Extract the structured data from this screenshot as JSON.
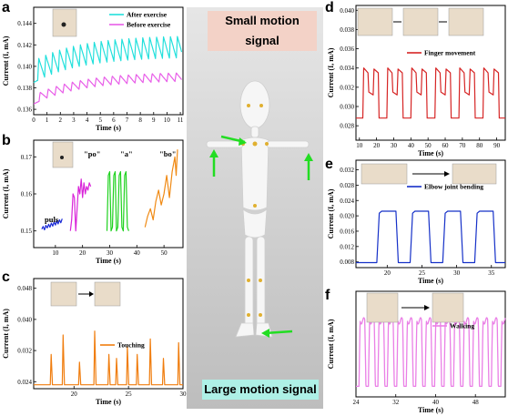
{
  "banners": {
    "top": "Small motion signal",
    "bottom": "Large motion signal",
    "top_color": "#f3d2c7",
    "bottom_color": "#aef0e6"
  },
  "labels": {
    "a": "a",
    "b": "b",
    "c": "c",
    "d": "d",
    "e": "e",
    "f": "f"
  },
  "chart_data": [
    {
      "id": "a",
      "type": "line",
      "xlabel": "Time (s)",
      "ylabel": "Current (I, mA)",
      "xlim": [
        0,
        11.2
      ],
      "ylim": [
        0.1355,
        0.1455
      ],
      "xticks": [
        0,
        1,
        2,
        3,
        4,
        5,
        6,
        7,
        8,
        9,
        10,
        11
      ],
      "yticks": [
        0.136,
        0.138,
        0.14,
        0.142,
        0.144
      ],
      "ytick_labels": [
        "0.136",
        "0.138",
        "0.140",
        "0.142",
        "0.144"
      ],
      "legend_position": "top-right",
      "series": [
        {
          "name": "After exercise",
          "color": "#22e0dc",
          "base": 0.1385,
          "trend": 0.0024,
          "amp": 0.002,
          "period": 0.52,
          "start": 0.3
        },
        {
          "name": "Before exercise",
          "color": "#e85ee8",
          "base": 0.1365,
          "trend": 0.0022,
          "amp": 0.0008,
          "period": 0.6,
          "start": 0.4
        }
      ]
    },
    {
      "id": "b",
      "type": "line",
      "xlabel": "Time (s)",
      "ylabel": "Current (I, mA)",
      "xlim": [
        2,
        57
      ],
      "ylim": [
        0.1455,
        0.1745
      ],
      "xticks": [
        10,
        20,
        30,
        40,
        50
      ],
      "yticks": [
        0.15,
        0.16,
        0.17
      ],
      "ytick_labels": [
        "0.15",
        "0.16",
        "0.17"
      ],
      "series": [
        {
          "name": "puls",
          "label": "puls",
          "color": "#1a2ad6",
          "x": [
            5.0,
            5.5,
            6.0,
            6.5,
            7.0,
            7.5,
            8.0,
            8.5,
            9.0,
            9.5,
            10.0,
            10.5,
            11.0,
            11.5,
            12.0,
            12.5
          ],
          "y": [
            0.1505,
            0.1512,
            0.1503,
            0.1515,
            0.1508,
            0.1518,
            0.151,
            0.1521,
            0.1513,
            0.1524,
            0.1516,
            0.1527,
            0.1519,
            0.153,
            0.1522,
            0.1533
          ]
        },
        {
          "name": "po",
          "label": "\"po\"",
          "color": "#d924d9",
          "x": [
            15.5,
            16.0,
            16.5,
            17.0,
            17.5,
            18.0,
            18.5,
            19.0,
            19.5,
            20.0,
            20.5,
            21.0,
            21.5,
            22.0,
            22.5,
            23.0
          ],
          "y": [
            0.15,
            0.153,
            0.16,
            0.159,
            0.15,
            0.156,
            0.162,
            0.16,
            0.164,
            0.159,
            0.163,
            0.16,
            0.162,
            0.161,
            0.163,
            0.162
          ]
        },
        {
          "name": "a",
          "label": "\"a\"",
          "color": "#1fd21f",
          "x": [
            29.0,
            29.5,
            30.0,
            30.5,
            31.0,
            31.5,
            32.0,
            32.5,
            33.0,
            33.5,
            34.0,
            34.5,
            35.0,
            35.5,
            36.0,
            36.5,
            37.0
          ],
          "y": [
            0.15,
            0.165,
            0.166,
            0.15,
            0.151,
            0.165,
            0.166,
            0.15,
            0.151,
            0.165,
            0.166,
            0.151,
            0.15,
            0.165,
            0.166,
            0.151,
            0.15
          ]
        },
        {
          "name": "bo",
          "label": "\"bo\"",
          "color": "#f08a14",
          "x": [
            43.0,
            44.0,
            45.0,
            46.0,
            47.0,
            48.0,
            49.0,
            50.0,
            51.0,
            52.0,
            53.0,
            54.0,
            54.5,
            55.0
          ],
          "y": [
            0.151,
            0.154,
            0.156,
            0.153,
            0.158,
            0.161,
            0.157,
            0.16,
            0.165,
            0.159,
            0.166,
            0.17,
            0.165,
            0.172
          ]
        }
      ]
    },
    {
      "id": "c",
      "type": "line",
      "xlabel": "Time (s)",
      "ylabel": "Current (I, mA)",
      "xlim": [
        16.3,
        30
      ],
      "ylim": [
        0.0222,
        0.0505
      ],
      "xticks": [
        20,
        25,
        30
      ],
      "yticks": [
        0.024,
        0.032,
        0.04,
        0.048
      ],
      "ytick_labels": [
        "0.024",
        "0.032",
        "0.040",
        "0.048"
      ],
      "legend_position": "center-right",
      "series": [
        {
          "name": "Touching",
          "color": "#f07d0e",
          "baseline": 0.0232,
          "peaks": [
            [
              17.9,
              0.031
            ],
            [
              19.0,
              0.036
            ],
            [
              20.5,
              0.029
            ],
            [
              21.9,
              0.037
            ],
            [
              23.2,
              0.031
            ],
            [
              23.9,
              0.03
            ],
            [
              24.9,
              0.033
            ],
            [
              25.8,
              0.031
            ],
            [
              27.0,
              0.035
            ],
            [
              28.2,
              0.03
            ],
            [
              29.6,
              0.034
            ]
          ]
        }
      ]
    },
    {
      "id": "d",
      "type": "line",
      "xlabel": "Time (s)",
      "ylabel": "Current (I, mA)",
      "xlim": [
        8,
        95
      ],
      "ylim": [
        0.0265,
        0.0405
      ],
      "xticks": [
        10,
        20,
        30,
        40,
        50,
        60,
        70,
        80,
        90
      ],
      "yticks": [
        0.028,
        0.03,
        0.032,
        0.034,
        0.036,
        0.038,
        0.04
      ],
      "ytick_labels": [
        "0.028",
        "0.030",
        "0.032",
        "0.034",
        "0.036",
        "0.038",
        "0.040"
      ],
      "legend_position": "center-right",
      "series": [
        {
          "name": "Finger movement",
          "color": "#d62424",
          "low": 0.0288,
          "mid": 0.0315,
          "high": 0.0335,
          "starts": [
            12,
            26,
            40,
            54,
            68,
            82
          ]
        }
      ]
    },
    {
      "id": "e",
      "type": "line",
      "xlabel": "Time (s)",
      "ylabel": "Current (I, mA)",
      "xlim": [
        15.5,
        37
      ],
      "ylim": [
        0.0065,
        0.0345
      ],
      "xticks": [
        20,
        25,
        30,
        35
      ],
      "yticks": [
        0.008,
        0.012,
        0.016,
        0.02,
        0.024,
        0.028,
        0.032
      ],
      "ytick_labels": [
        "0.008",
        "0.012",
        "0.016",
        "0.020",
        "0.024",
        "0.028",
        "0.032"
      ],
      "legend_position": "center-right",
      "series": [
        {
          "name": "Elbow joint bending",
          "color": "#1530c8",
          "low": 0.0078,
          "high": 0.0212,
          "pulses": [
            [
              18.5,
              21.6
            ],
            [
              23.3,
              26.3
            ],
            [
              28.0,
              30.9
            ],
            [
              32.6,
              35.6
            ]
          ]
        }
      ]
    },
    {
      "id": "f",
      "type": "line",
      "xlabel": "Time (s)",
      "ylabel": "Current (I, mA)",
      "xlim": [
        24,
        54
      ],
      "ylim": [
        0,
        1
      ],
      "xticks": [
        24,
        32,
        40,
        48
      ],
      "yticks": [],
      "legend_position": "top-right",
      "series": [
        {
          "name": "Walking",
          "color": "#ea7fe6",
          "low": 0.1,
          "high": 0.72,
          "period": 1.9,
          "start": 24.6
        }
      ]
    }
  ]
}
